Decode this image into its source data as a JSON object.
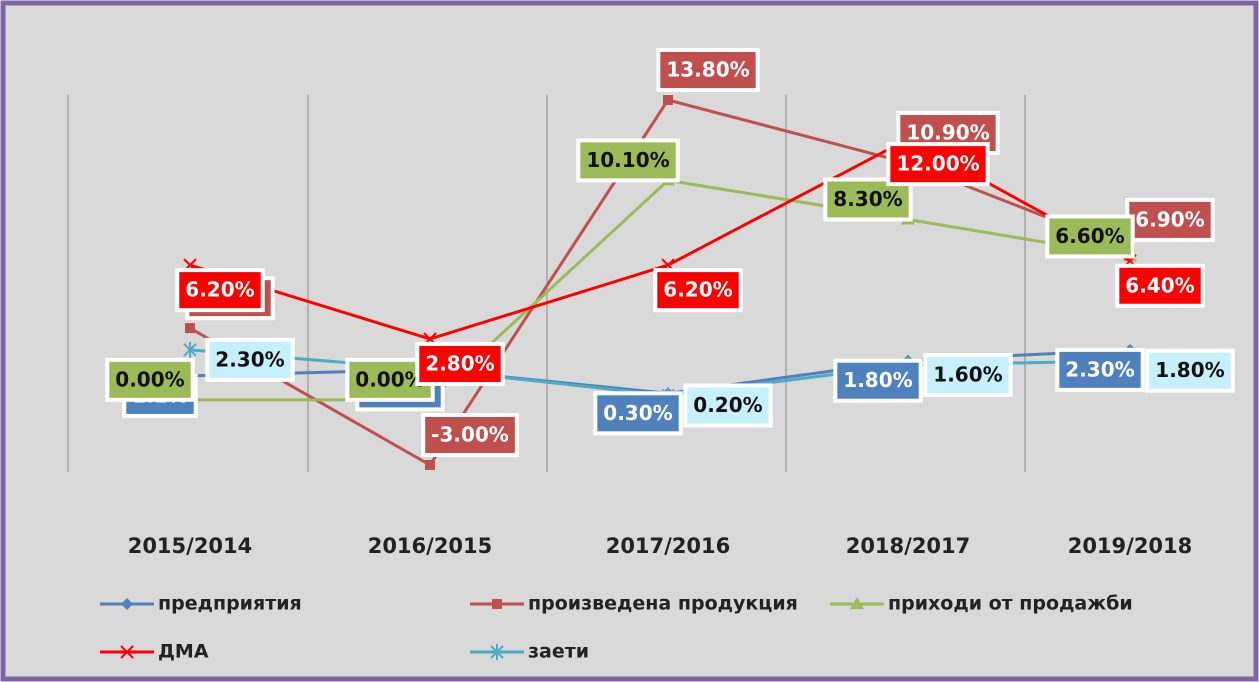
{
  "chart_data": {
    "type": "line",
    "categories": [
      "2015/2014",
      "2016/2015",
      "2017/2016",
      "2018/2017",
      "2019/2018"
    ],
    "series": [
      {
        "name": "предприятия",
        "color": "#4f81bd",
        "values": [
          1.1,
          1.4,
          0.3,
          1.8,
          2.3
        ],
        "value_labels": [
          "1.1%",
          "1.40%",
          "0.30%",
          "1.80%",
          "2.30%"
        ]
      },
      {
        "name": "произведена продукция",
        "color": "#c0504d",
        "values": [
          3.3,
          -3.0,
          13.8,
          10.9,
          6.9
        ],
        "value_labels": [
          "3.30%",
          "-3.00%",
          "13.80%",
          "10.90%",
          "6.90%"
        ]
      },
      {
        "name": "приходи от продажби",
        "color": "#9bbb59",
        "values": [
          0.0,
          0.0,
          10.1,
          8.3,
          6.6
        ],
        "value_labels": [
          "0.00%",
          "0.00%",
          "10.10%",
          "8.30%",
          "6.60%"
        ]
      },
      {
        "name": "ДМА",
        "color": "#ff0000",
        "values": [
          6.2,
          2.8,
          6.2,
          12.0,
          6.4
        ],
        "value_labels": [
          "6.20%",
          "2.80%",
          "6.20%",
          "12.00%",
          "6.40%"
        ]
      },
      {
        "name": "заети",
        "color": "#4bacc6",
        "values": [
          2.3,
          1.4,
          0.2,
          1.6,
          1.8
        ],
        "value_labels": [
          "2.30%",
          null,
          "0.20%",
          "1.60%",
          "1.80%"
        ]
      }
    ]
  }
}
